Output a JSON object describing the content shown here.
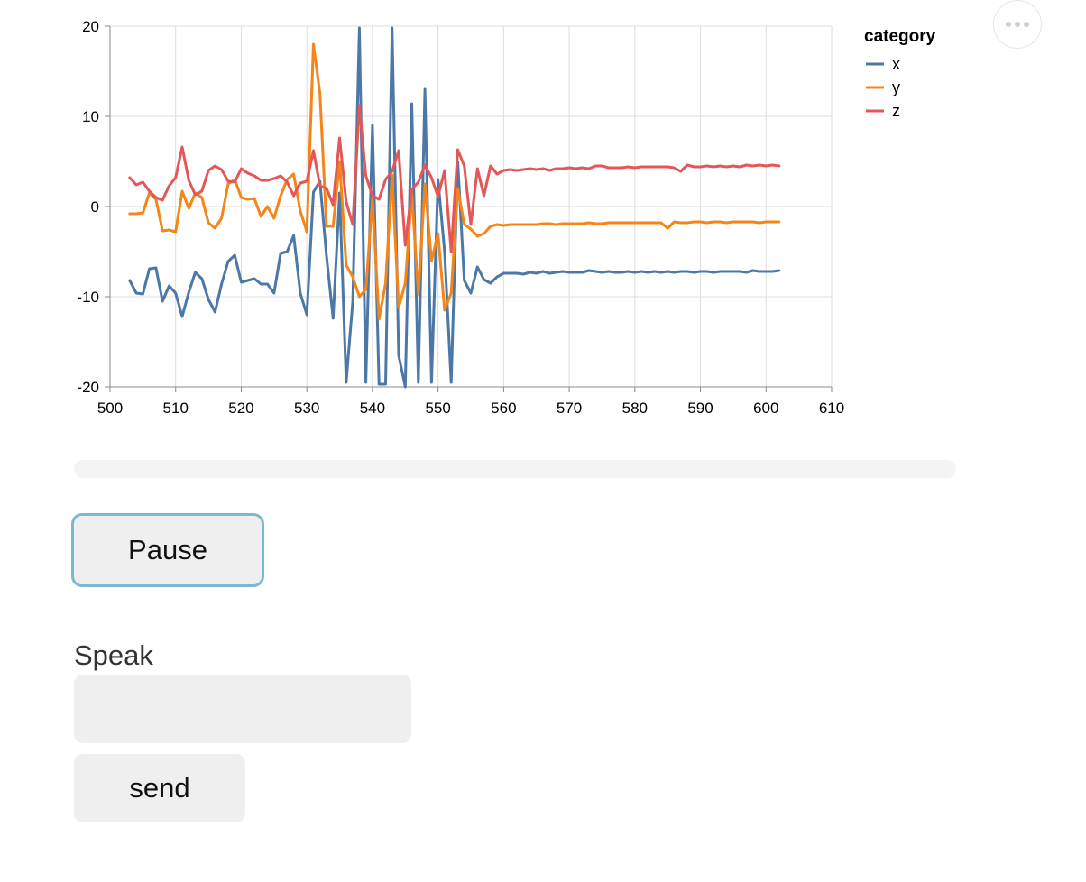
{
  "controls": {
    "pause_label": "Pause",
    "speak_label": "Speak",
    "speak_input_value": "",
    "send_label": "send",
    "progress_fraction": 0
  },
  "menu": {
    "icon": "more-horizontal-icon"
  },
  "chart_data": {
    "type": "line",
    "title": "",
    "xlabel": "",
    "ylabel": "",
    "xlim": [
      500,
      610
    ],
    "ylim": [
      -20,
      20
    ],
    "x_ticks": [
      500,
      510,
      520,
      530,
      540,
      550,
      560,
      570,
      580,
      590,
      600,
      610
    ],
    "y_ticks": [
      20,
      10,
      0,
      -10,
      -20
    ],
    "x_tick_labels": [
      "500",
      "510",
      "520",
      "530",
      "540",
      "550",
      "560",
      "570",
      "580",
      "590",
      "600",
      "610"
    ],
    "y_tick_labels": [
      "20",
      "10",
      "0",
      "-10",
      "-20"
    ],
    "grid": true,
    "legend": {
      "title": "category",
      "placement": "top-right"
    },
    "series": [
      {
        "name": "x",
        "color": "#4c78a8",
        "points": [
          [
            503,
            -8.2
          ],
          [
            504,
            -9.6
          ],
          [
            505,
            -9.7
          ],
          [
            506,
            -6.9
          ],
          [
            507,
            -6.8
          ],
          [
            508,
            -10.5
          ],
          [
            509,
            -8.8
          ],
          [
            510,
            -9.6
          ],
          [
            511,
            -12.2
          ],
          [
            512,
            -9.5
          ],
          [
            513,
            -7.3
          ],
          [
            514,
            -8.0
          ],
          [
            515,
            -10.3
          ],
          [
            516,
            -11.7
          ],
          [
            517,
            -8.6
          ],
          [
            518,
            -6.1
          ],
          [
            519,
            -5.4
          ],
          [
            520,
            -8.4
          ],
          [
            521,
            -8.2
          ],
          [
            522,
            -8.0
          ],
          [
            523,
            -8.6
          ],
          [
            524,
            -8.6
          ],
          [
            525,
            -9.6
          ],
          [
            526,
            -5.2
          ],
          [
            527,
            -5.0
          ],
          [
            528,
            -3.2
          ],
          [
            529,
            -9.6
          ],
          [
            530,
            -12.0
          ],
          [
            531,
            1.6
          ],
          [
            532,
            2.8
          ],
          [
            533,
            -5.5
          ],
          [
            534,
            -12.4
          ],
          [
            535,
            1.5
          ],
          [
            536,
            -19.5
          ],
          [
            537,
            -10.5
          ],
          [
            538,
            19.8
          ],
          [
            539,
            -19.5
          ],
          [
            540,
            9.0
          ],
          [
            541,
            -19.7
          ],
          [
            542,
            -19.7
          ],
          [
            543,
            19.8
          ],
          [
            544,
            -16.5
          ],
          [
            545,
            -20.0
          ],
          [
            546,
            11.4
          ],
          [
            547,
            -19.5
          ],
          [
            548,
            13.0
          ],
          [
            549,
            -19.5
          ],
          [
            550,
            3.0
          ],
          [
            551,
            -5.0
          ],
          [
            552,
            -19.5
          ],
          [
            553,
            5.0
          ],
          [
            554,
            -8.2
          ],
          [
            555,
            -9.6
          ],
          [
            556,
            -6.7
          ],
          [
            557,
            -8.1
          ],
          [
            558,
            -8.5
          ],
          [
            559,
            -7.8
          ],
          [
            560,
            -7.4
          ],
          [
            561,
            -7.4
          ],
          [
            562,
            -7.4
          ],
          [
            563,
            -7.5
          ],
          [
            564,
            -7.3
          ],
          [
            565,
            -7.4
          ],
          [
            566,
            -7.2
          ],
          [
            567,
            -7.4
          ],
          [
            568,
            -7.3
          ],
          [
            569,
            -7.2
          ],
          [
            570,
            -7.3
          ],
          [
            571,
            -7.3
          ],
          [
            572,
            -7.3
          ],
          [
            573,
            -7.1
          ],
          [
            574,
            -7.2
          ],
          [
            575,
            -7.3
          ],
          [
            576,
            -7.2
          ],
          [
            577,
            -7.3
          ],
          [
            578,
            -7.3
          ],
          [
            579,
            -7.2
          ],
          [
            580,
            -7.3
          ],
          [
            581,
            -7.2
          ],
          [
            582,
            -7.3
          ],
          [
            583,
            -7.2
          ],
          [
            584,
            -7.3
          ],
          [
            585,
            -7.2
          ],
          [
            586,
            -7.3
          ],
          [
            587,
            -7.2
          ],
          [
            588,
            -7.2
          ],
          [
            589,
            -7.3
          ],
          [
            590,
            -7.2
          ],
          [
            591,
            -7.2
          ],
          [
            592,
            -7.3
          ],
          [
            593,
            -7.2
          ],
          [
            594,
            -7.2
          ],
          [
            595,
            -7.2
          ],
          [
            596,
            -7.2
          ],
          [
            597,
            -7.3
          ],
          [
            598,
            -7.1
          ],
          [
            599,
            -7.2
          ],
          [
            600,
            -7.2
          ],
          [
            601,
            -7.2
          ],
          [
            602,
            -7.1
          ]
        ]
      },
      {
        "name": "y",
        "color": "#f58518",
        "points": [
          [
            503,
            -0.8
          ],
          [
            504,
            -0.8
          ],
          [
            505,
            -0.7
          ],
          [
            506,
            1.5
          ],
          [
            507,
            0.8
          ],
          [
            508,
            -2.7
          ],
          [
            509,
            -2.6
          ],
          [
            510,
            -2.8
          ],
          [
            511,
            1.7
          ],
          [
            512,
            -0.2
          ],
          [
            513,
            1.5
          ],
          [
            514,
            1.0
          ],
          [
            515,
            -1.8
          ],
          [
            516,
            -2.4
          ],
          [
            517,
            -1.3
          ],
          [
            518,
            2.5
          ],
          [
            519,
            3.0
          ],
          [
            520,
            1.0
          ],
          [
            521,
            0.8
          ],
          [
            522,
            0.9
          ],
          [
            523,
            -1.1
          ],
          [
            524,
            0.0
          ],
          [
            525,
            -1.3
          ],
          [
            526,
            1.2
          ],
          [
            527,
            3.0
          ],
          [
            528,
            3.6
          ],
          [
            529,
            -0.5
          ],
          [
            530,
            -2.8
          ],
          [
            531,
            18.0
          ],
          [
            532,
            12.5
          ],
          [
            533,
            -2.2
          ],
          [
            534,
            -2.2
          ],
          [
            535,
            5.0
          ],
          [
            536,
            -6.5
          ],
          [
            537,
            -7.8
          ],
          [
            538,
            -10.0
          ],
          [
            539,
            -9.2
          ],
          [
            540,
            0.8
          ],
          [
            541,
            -12.5
          ],
          [
            542,
            -8.5
          ],
          [
            543,
            3.5
          ],
          [
            544,
            -11.2
          ],
          [
            545,
            -8.5
          ],
          [
            546,
            1.5
          ],
          [
            547,
            -9.7
          ],
          [
            548,
            2.5
          ],
          [
            549,
            -6.0
          ],
          [
            550,
            -3.0
          ],
          [
            551,
            -11.5
          ],
          [
            552,
            -9.6
          ],
          [
            553,
            2.0
          ],
          [
            554,
            -2.0
          ],
          [
            555,
            -2.5
          ],
          [
            556,
            -3.3
          ],
          [
            557,
            -3.0
          ],
          [
            558,
            -2.2
          ],
          [
            559,
            -2.0
          ],
          [
            560,
            -2.1
          ],
          [
            561,
            -2.0
          ],
          [
            562,
            -2.0
          ],
          [
            563,
            -2.0
          ],
          [
            564,
            -2.0
          ],
          [
            565,
            -2.0
          ],
          [
            566,
            -1.9
          ],
          [
            567,
            -1.9
          ],
          [
            568,
            -2.0
          ],
          [
            569,
            -1.9
          ],
          [
            570,
            -1.9
          ],
          [
            571,
            -1.9
          ],
          [
            572,
            -1.9
          ],
          [
            573,
            -1.8
          ],
          [
            574,
            -1.9
          ],
          [
            575,
            -1.9
          ],
          [
            576,
            -1.8
          ],
          [
            577,
            -1.8
          ],
          [
            578,
            -1.8
          ],
          [
            579,
            -1.8
          ],
          [
            580,
            -1.8
          ],
          [
            581,
            -1.8
          ],
          [
            582,
            -1.8
          ],
          [
            583,
            -1.8
          ],
          [
            584,
            -1.8
          ],
          [
            585,
            -2.4
          ],
          [
            586,
            -1.7
          ],
          [
            587,
            -1.8
          ],
          [
            588,
            -1.8
          ],
          [
            589,
            -1.7
          ],
          [
            590,
            -1.7
          ],
          [
            591,
            -1.8
          ],
          [
            592,
            -1.7
          ],
          [
            593,
            -1.7
          ],
          [
            594,
            -1.8
          ],
          [
            595,
            -1.7
          ],
          [
            596,
            -1.7
          ],
          [
            597,
            -1.7
          ],
          [
            598,
            -1.7
          ],
          [
            599,
            -1.8
          ],
          [
            600,
            -1.7
          ],
          [
            601,
            -1.7
          ],
          [
            602,
            -1.7
          ]
        ]
      },
      {
        "name": "z",
        "color": "#e45756",
        "points": [
          [
            503,
            3.2
          ],
          [
            504,
            2.4
          ],
          [
            505,
            2.7
          ],
          [
            506,
            1.7
          ],
          [
            507,
            1.0
          ],
          [
            508,
            0.7
          ],
          [
            509,
            2.3
          ],
          [
            510,
            3.2
          ],
          [
            511,
            6.6
          ],
          [
            512,
            2.9
          ],
          [
            513,
            1.3
          ],
          [
            514,
            1.7
          ],
          [
            515,
            4.0
          ],
          [
            516,
            4.5
          ],
          [
            517,
            4.1
          ],
          [
            518,
            2.8
          ],
          [
            519,
            2.7
          ],
          [
            520,
            4.2
          ],
          [
            521,
            3.7
          ],
          [
            522,
            3.4
          ],
          [
            523,
            2.9
          ],
          [
            524,
            2.9
          ],
          [
            525,
            3.1
          ],
          [
            526,
            3.4
          ],
          [
            527,
            2.7
          ],
          [
            528,
            1.2
          ],
          [
            529,
            2.6
          ],
          [
            530,
            2.8
          ],
          [
            531,
            6.2
          ],
          [
            532,
            2.3
          ],
          [
            533,
            2.0
          ],
          [
            534,
            0.2
          ],
          [
            535,
            7.6
          ],
          [
            536,
            0.5
          ],
          [
            537,
            -2.0
          ],
          [
            538,
            11.2
          ],
          [
            539,
            3.4
          ],
          [
            540,
            1.2
          ],
          [
            541,
            0.8
          ],
          [
            542,
            3.0
          ],
          [
            543,
            3.9
          ],
          [
            544,
            6.2
          ],
          [
            545,
            -4.3
          ],
          [
            546,
            1.9
          ],
          [
            547,
            2.7
          ],
          [
            548,
            4.6
          ],
          [
            549,
            3.2
          ],
          [
            550,
            1.1
          ],
          [
            551,
            4.0
          ],
          [
            552,
            -5.0
          ],
          [
            553,
            6.3
          ],
          [
            554,
            4.5
          ],
          [
            555,
            -2.0
          ],
          [
            556,
            4.2
          ],
          [
            557,
            1.2
          ],
          [
            558,
            4.5
          ],
          [
            559,
            3.6
          ],
          [
            560,
            4.0
          ],
          [
            561,
            4.1
          ],
          [
            562,
            4.0
          ],
          [
            563,
            4.1
          ],
          [
            564,
            4.2
          ],
          [
            565,
            4.1
          ],
          [
            566,
            4.2
          ],
          [
            567,
            4.0
          ],
          [
            568,
            4.2
          ],
          [
            569,
            4.2
          ],
          [
            570,
            4.3
          ],
          [
            571,
            4.2
          ],
          [
            572,
            4.3
          ],
          [
            573,
            4.2
          ],
          [
            574,
            4.5
          ],
          [
            575,
            4.5
          ],
          [
            576,
            4.3
          ],
          [
            577,
            4.3
          ],
          [
            578,
            4.3
          ],
          [
            579,
            4.4
          ],
          [
            580,
            4.3
          ],
          [
            581,
            4.4
          ],
          [
            582,
            4.4
          ],
          [
            583,
            4.4
          ],
          [
            584,
            4.4
          ],
          [
            585,
            4.4
          ],
          [
            586,
            4.3
          ],
          [
            587,
            3.9
          ],
          [
            588,
            4.6
          ],
          [
            589,
            4.4
          ],
          [
            590,
            4.4
          ],
          [
            591,
            4.5
          ],
          [
            592,
            4.4
          ],
          [
            593,
            4.5
          ],
          [
            594,
            4.4
          ],
          [
            595,
            4.5
          ],
          [
            596,
            4.4
          ],
          [
            597,
            4.6
          ],
          [
            598,
            4.5
          ],
          [
            599,
            4.6
          ],
          [
            600,
            4.5
          ],
          [
            601,
            4.6
          ],
          [
            602,
            4.5
          ]
        ]
      }
    ]
  }
}
